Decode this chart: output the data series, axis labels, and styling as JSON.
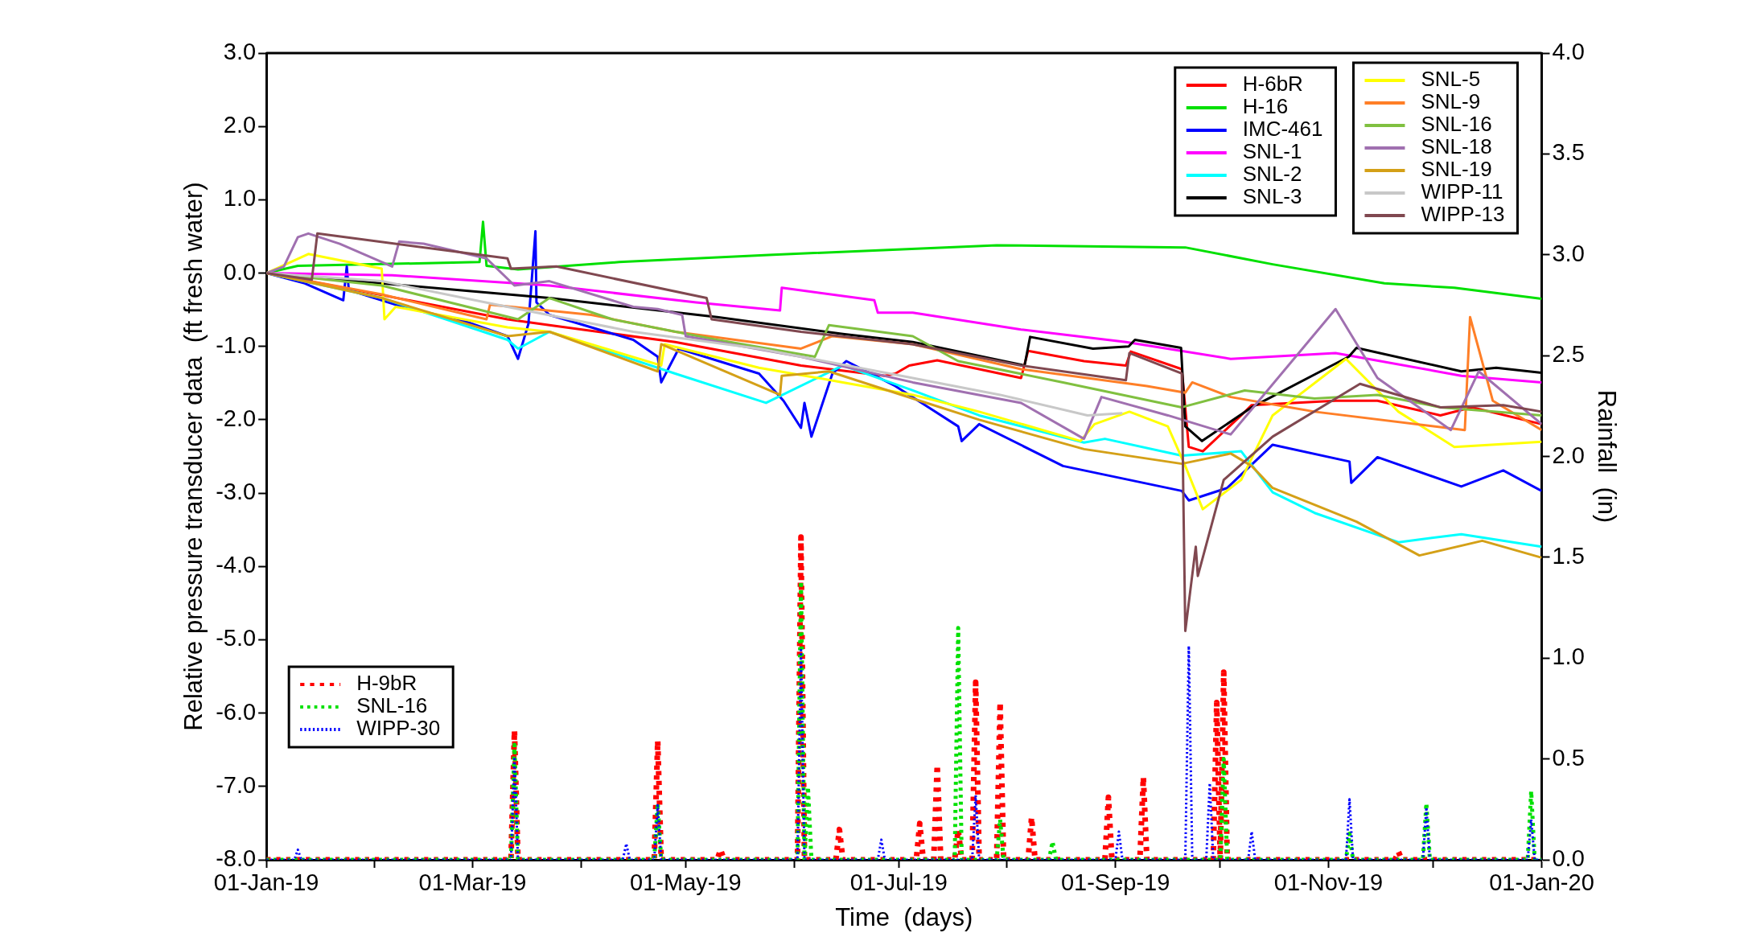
{
  "chart_data": {
    "type": "line",
    "xlabel": "Time  (days)",
    "ylabel": "Relative pressure transducer data  (ft fresh water)",
    "y2label": "Rainfall  (in)",
    "xlim": [
      "2019-01-01",
      "2020-01-01"
    ],
    "xticks": [
      {
        "value": "2019-01-01",
        "label": "01-Jan-19"
      },
      {
        "value": "2019-02-01",
        "label": null
      },
      {
        "value": "2019-03-01",
        "label": "01-Mar-19"
      },
      {
        "value": "2019-04-01",
        "label": null
      },
      {
        "value": "2019-05-01",
        "label": "01-May-19"
      },
      {
        "value": "2019-06-01",
        "label": null
      },
      {
        "value": "2019-07-01",
        "label": "01-Jul-19"
      },
      {
        "value": "2019-08-01",
        "label": null
      },
      {
        "value": "2019-09-01",
        "label": "01-Sep-19"
      },
      {
        "value": "2019-10-01",
        "label": null
      },
      {
        "value": "2019-11-01",
        "label": "01-Nov-19"
      },
      {
        "value": "2019-12-01",
        "label": null
      },
      {
        "value": "2020-01-01",
        "label": "01-Jan-20"
      }
    ],
    "ylim": [
      -8,
      3
    ],
    "yticks": [
      {
        "value": -8,
        "label": "-8.0"
      },
      {
        "value": -7,
        "label": "-7.0"
      },
      {
        "value": -6,
        "label": "-6.0"
      },
      {
        "value": -5,
        "label": "-5.0"
      },
      {
        "value": -4,
        "label": "-4.0"
      },
      {
        "value": -3,
        "label": "-3.0"
      },
      {
        "value": -2,
        "label": "-2.0"
      },
      {
        "value": -1,
        "label": "-1.0"
      },
      {
        "value": 0,
        "label": "0.0"
      },
      {
        "value": 1,
        "label": "1.0"
      },
      {
        "value": 2,
        "label": "2.0"
      },
      {
        "value": 3,
        "label": "3.0"
      }
    ],
    "y2lim": [
      0,
      4
    ],
    "y2ticks": [
      {
        "value": 0,
        "label": "0.0"
      },
      {
        "value": 0.5,
        "label": "0.5"
      },
      {
        "value": 1,
        "label": "1.0"
      },
      {
        "value": 1.5,
        "label": "1.5"
      },
      {
        "value": 2,
        "label": "2.0"
      },
      {
        "value": 2.5,
        "label": "2.5"
      },
      {
        "value": 3,
        "label": "3.0"
      },
      {
        "value": 3.5,
        "label": "3.5"
      },
      {
        "value": 4,
        "label": "4.0"
      }
    ],
    "legend": "top right",
    "marker": "none",
    "line_style": "solid",
    "series": [
      {
        "name": "H-6bR",
        "color": "#ff0000",
        "x": [
          "2019-01-01",
          "2019-02-03",
          "2019-03-11",
          "2019-03-23",
          "2019-04-28",
          "2019-06-03",
          "2019-06-27",
          "2019-06-30",
          "2019-07-04",
          "2019-07-12",
          "2019-08-05",
          "2019-08-07",
          "2019-08-23",
          "2019-09-04",
          "2019-09-05T10:00",
          "2019-09-20",
          "2019-09-22",
          "2019-09-26",
          "2019-10-07",
          "2019-10-10",
          "2019-11-03",
          "2019-11-15",
          "2019-12-03",
          "2019-12-12",
          "2020-01-01"
        ],
        "values": [
          0,
          -0.3,
          -0.63,
          -0.71,
          -0.94,
          -1.26,
          -1.4,
          -1.37,
          -1.26,
          -1.19,
          -1.43,
          -1.06,
          -1.2,
          -1.26,
          -1.07,
          -1.31,
          -2.37,
          -2.43,
          -1.94,
          -1.8,
          -1.74,
          -1.74,
          -1.94,
          -1.83,
          -2.06
        ]
      },
      {
        "name": "H-16",
        "color": "#00e000",
        "x": [
          "2019-01-01",
          "2019-01-10",
          "2019-03-03",
          "2019-03-04",
          "2019-03-05",
          "2019-03-14",
          "2019-04-12",
          "2019-05-26",
          "2019-07-29",
          "2019-09-21",
          "2019-10-16",
          "2019-11-17",
          "2019-12-07",
          "2020-01-01"
        ],
        "values": [
          0,
          0.1,
          0.15,
          0.7,
          0.1,
          0.05,
          0.15,
          0.25,
          0.38,
          0.35,
          0.12,
          -0.14,
          -0.2,
          -0.35
        ]
      },
      {
        "name": "IMC-461",
        "color": "#0000ff",
        "x": [
          "2019-01-01",
          "2019-01-12",
          "2019-01-23",
          "2019-01-24",
          "2019-01-24T14:00",
          "2019-02-09",
          "2019-02-27",
          "2019-03-11",
          "2019-03-14",
          "2019-03-17",
          "2019-03-19",
          "2019-03-19T07:00",
          "2019-03-23",
          "2019-04-16",
          "2019-04-23",
          "2019-04-24",
          "2019-04-29",
          "2019-05-22",
          "2019-05-29",
          "2019-06-03",
          "2019-06-04",
          "2019-06-06",
          "2019-06-12",
          "2019-06-16",
          "2019-06-30",
          "2019-07-18",
          "2019-07-19",
          "2019-07-24",
          "2019-08-17",
          "2019-09-20",
          "2019-09-22",
          "2019-10-03",
          "2019-10-16",
          "2019-11-07",
          "2019-11-07T12:00",
          "2019-11-15",
          "2019-12-09",
          "2019-12-21",
          "2020-01-01"
        ],
        "values": [
          0,
          -0.14,
          -0.37,
          0.09,
          -0.23,
          -0.46,
          -0.66,
          -0.86,
          -1.17,
          -0.69,
          0.57,
          -0.4,
          -0.57,
          -0.91,
          -1.14,
          -1.49,
          -1.03,
          -1.37,
          -1.74,
          -2.11,
          -1.77,
          -2.23,
          -1.37,
          -1.2,
          -1.54,
          -2.09,
          -2.29,
          -2.06,
          -2.63,
          -2.97,
          -3.1,
          -2.93,
          -2.34,
          -2.57,
          -2.86,
          -2.51,
          -2.91,
          -2.69,
          -2.97
        ]
      },
      {
        "name": "SNL-1",
        "color": "#ff00ff",
        "x": [
          "2019-01-01",
          "2019-02-06",
          "2019-03-23",
          "2019-05-04",
          "2019-05-28",
          "2019-05-28T12:00",
          "2019-06-24",
          "2019-06-25",
          "2019-07-05",
          "2019-08-05",
          "2019-09-04",
          "2019-10-04",
          "2019-11-03",
          "2019-12-09",
          "2020-01-01"
        ],
        "values": [
          0,
          -0.03,
          -0.17,
          -0.4,
          -0.51,
          -0.2,
          -0.37,
          -0.54,
          -0.54,
          -0.77,
          -0.94,
          -1.17,
          -1.09,
          -1.4,
          -1.49
        ]
      },
      {
        "name": "SNL-2",
        "color": "#00ffff",
        "x": [
          "2019-01-01",
          "2019-02-03",
          "2019-03-11",
          "2019-03-14",
          "2019-03-23",
          "2019-04-28",
          "2019-05-24",
          "2019-06-15",
          "2019-07-05",
          "2019-07-24",
          "2019-08-23",
          "2019-08-29",
          "2019-09-20",
          "2019-10-07",
          "2019-10-16",
          "2019-10-28",
          "2019-11-21",
          "2019-12-09",
          "2020-01-01"
        ],
        "values": [
          0,
          -0.34,
          -0.91,
          -1.03,
          -0.8,
          -1.37,
          -1.77,
          -1.26,
          -1.6,
          -1.94,
          -2.31,
          -2.26,
          -2.49,
          -2.43,
          -2.99,
          -3.27,
          -3.67,
          -3.56,
          -3.73
        ]
      },
      {
        "name": "SNL-3",
        "color": "#000000",
        "x": [
          "2019-01-01",
          "2019-02-03",
          "2019-03-23",
          "2019-05-10",
          "2019-06-15",
          "2019-07-05",
          "2019-08-06",
          "2019-08-07T14:00",
          "2019-08-25T14:00",
          "2019-09-04T19:00",
          "2019-09-06T14:00",
          "2019-09-19T19:00",
          "2019-09-21",
          "2019-09-25T19:00",
          "2019-10-10",
          "2019-11-06T19:00",
          "2019-11-09",
          "2019-12-09",
          "2019-12-19",
          "2020-01-01"
        ],
        "values": [
          0,
          -0.14,
          -0.34,
          -0.6,
          -0.83,
          -0.94,
          -1.26,
          -0.87,
          -1.03,
          -1.0,
          -0.91,
          -1.02,
          -2.09,
          -2.29,
          -1.83,
          -1.14,
          -1.02,
          -1.34,
          -1.29,
          -1.36
        ]
      },
      {
        "name": "SNL-5",
        "color": "#ffff00",
        "x": [
          "2019-01-01",
          "2019-01-13",
          "2019-02-03",
          "2019-02-03T19:00",
          "2019-02-07",
          "2019-03-11",
          "2019-03-23",
          "2019-04-24",
          "2019-04-25",
          "2019-05-22",
          "2019-06-15",
          "2019-07-05",
          "2019-07-24",
          "2019-08-22",
          "2019-08-26",
          "2019-09-05",
          "2019-09-16",
          "2019-09-21",
          "2019-09-26",
          "2019-10-07",
          "2019-10-16",
          "2019-11-06",
          "2019-11-21",
          "2019-12-07",
          "2020-01-01"
        ],
        "values": [
          0,
          0.26,
          0.06,
          -0.63,
          -0.46,
          -0.74,
          -0.8,
          -1.26,
          -0.97,
          -1.29,
          -1.49,
          -1.66,
          -1.89,
          -2.29,
          -2.06,
          -1.89,
          -2.09,
          -2.63,
          -3.22,
          -2.82,
          -1.94,
          -1.17,
          -1.89,
          -2.37,
          -2.3
        ]
      },
      {
        "name": "SNL-9",
        "color": "#ff7f27",
        "x": [
          "2019-01-01",
          "2019-02-03",
          "2019-03-05",
          "2019-03-06",
          "2019-04-04",
          "2019-04-28",
          "2019-06-03",
          "2019-06-12",
          "2019-07-05",
          "2019-08-05",
          "2019-09-10",
          "2019-09-21",
          "2019-09-23",
          "2019-10-04",
          "2019-10-28",
          "2019-12-10",
          "2019-12-11T12:00",
          "2019-12-18",
          "2020-01-01"
        ],
        "values": [
          0,
          -0.29,
          -0.63,
          -0.43,
          -0.57,
          -0.8,
          -1.03,
          -0.86,
          -0.97,
          -1.31,
          -1.54,
          -1.63,
          -1.49,
          -1.69,
          -1.89,
          -2.14,
          -0.6,
          -1.74,
          -2.14
        ]
      },
      {
        "name": "SNL-16",
        "color": "#80c040",
        "x": [
          "2019-01-01",
          "2019-02-03",
          "2019-03-14",
          "2019-03-23",
          "2019-04-10",
          "2019-05-10",
          "2019-06-07",
          "2019-06-11",
          "2019-07-05",
          "2019-07-18",
          "2019-08-17",
          "2019-09-20",
          "2019-10-08",
          "2019-10-28",
          "2019-11-15",
          "2019-12-03",
          "2020-01-01"
        ],
        "values": [
          0,
          -0.17,
          -0.63,
          -0.34,
          -0.63,
          -0.91,
          -1.14,
          -0.71,
          -0.86,
          -1.2,
          -1.49,
          -1.83,
          -1.6,
          -1.71,
          -1.66,
          -1.83,
          -1.94
        ]
      },
      {
        "name": "SNL-18",
        "color": "#a070b0",
        "x": [
          "2019-01-01",
          "2019-01-06",
          "2019-01-10",
          "2019-01-13",
          "2019-01-22",
          "2019-02-06",
          "2019-02-08",
          "2019-02-15",
          "2019-03-05",
          "2019-03-13",
          "2019-03-23",
          "2019-04-16",
          "2019-04-23",
          "2019-04-30",
          "2019-05-01",
          "2019-06-03",
          "2019-07-05",
          "2019-08-05",
          "2019-08-23",
          "2019-08-28",
          "2019-09-16",
          "2019-10-04",
          "2019-11-03",
          "2019-11-15",
          "2019-12-06",
          "2019-12-14",
          "2020-01-01"
        ],
        "values": [
          0,
          0.09,
          0.49,
          0.54,
          0.4,
          0.09,
          0.43,
          0.4,
          0.2,
          -0.17,
          -0.11,
          -0.46,
          -0.49,
          -0.57,
          -0.86,
          -1.14,
          -1.49,
          -1.77,
          -2.26,
          -1.69,
          -1.94,
          -2.2,
          -0.49,
          -1.43,
          -2.14,
          -1.34,
          -2.06
        ]
      },
      {
        "name": "SNL-19",
        "color": "#d4a017",
        "x": [
          "2019-01-01",
          "2019-02-03",
          "2019-03-11",
          "2019-03-23",
          "2019-04-23",
          "2019-04-24",
          "2019-05-28",
          "2019-05-28T12:00",
          "2019-06-11",
          "2019-07-05",
          "2019-07-24",
          "2019-08-23",
          "2019-09-20",
          "2019-10-04",
          "2019-10-10",
          "2019-10-16",
          "2019-11-09",
          "2019-11-27",
          "2019-12-15",
          "2020-01-01"
        ],
        "values": [
          0,
          -0.34,
          -0.86,
          -0.8,
          -1.34,
          -0.97,
          -1.66,
          -1.4,
          -1.34,
          -1.71,
          -2.0,
          -2.4,
          -2.6,
          -2.46,
          -2.63,
          -2.93,
          -3.39,
          -3.85,
          -3.65,
          -3.88
        ]
      },
      {
        "name": "WIPP-11",
        "color": "#c8c8c8",
        "x": [
          "2019-01-01",
          "2019-02-03",
          "2019-03-11",
          "2019-04-16",
          "2019-05-22",
          "2019-07-05",
          "2019-07-30",
          "2019-08-24",
          "2019-09-03"
        ],
        "values": [
          0,
          -0.11,
          -0.46,
          -0.8,
          -1.03,
          -1.43,
          -1.66,
          -1.94,
          -1.91
        ]
      },
      {
        "name": "WIPP-13",
        "color": "#804850",
        "x": [
          "2019-01-01",
          "2019-01-14",
          "2019-01-15T14:00",
          "2019-03-11",
          "2019-03-12",
          "2019-03-25",
          "2019-05-07",
          "2019-05-08T10:00",
          "2019-06-03",
          "2019-07-05",
          "2019-08-05",
          "2019-09-04",
          "2019-09-05",
          "2019-09-20",
          "2019-09-20T10:00",
          "2019-09-21",
          "2019-09-24",
          "2019-09-24T14:00",
          "2019-10-02",
          "2019-10-16",
          "2019-11-10",
          "2019-12-03",
          "2019-12-21",
          "2020-01-01"
        ],
        "values": [
          0,
          -0.09,
          0.54,
          0.2,
          0.06,
          0.09,
          -0.34,
          -0.63,
          -0.8,
          -0.97,
          -1.26,
          -1.46,
          -1.09,
          -1.37,
          -2.97,
          -4.88,
          -3.73,
          -4.13,
          -2.82,
          -2.23,
          -1.51,
          -1.83,
          -1.8,
          -1.89
        ]
      },
      {
        "name": "H-9bR",
        "color": "#ff0000",
        "axis": "y2",
        "line_style": "dotted",
        "x": [
          "2019-01-01",
          "2019-03-12",
          "2019-03-13",
          "2019-03-14",
          "2019-04-22",
          "2019-04-23",
          "2019-04-24",
          "2019-05-10",
          "2019-05-11",
          "2019-05-12",
          "2019-06-02",
          "2019-06-03",
          "2019-06-04",
          "2019-06-13",
          "2019-06-14",
          "2019-06-15",
          "2019-07-06",
          "2019-07-07",
          "2019-07-08",
          "2019-07-11",
          "2019-07-12",
          "2019-07-13",
          "2019-07-17",
          "2019-07-18",
          "2019-07-19",
          "2019-07-22",
          "2019-07-23",
          "2019-07-24",
          "2019-07-29",
          "2019-07-30",
          "2019-07-31",
          "2019-08-07",
          "2019-08-08",
          "2019-08-09",
          "2019-08-29",
          "2019-08-30",
          "2019-08-31",
          "2019-09-08",
          "2019-09-09",
          "2019-09-10",
          "2019-09-29",
          "2019-09-30",
          "2019-10-01",
          "2019-10-02",
          "2019-10-03",
          "2019-11-20",
          "2019-11-21",
          "2019-11-22",
          "2020-01-01"
        ],
        "values": [
          0,
          0,
          0.64,
          0,
          0,
          0.59,
          0,
          0,
          0.05,
          0,
          0,
          1.6,
          0,
          0,
          0.15,
          0,
          0,
          0.18,
          0,
          0,
          0.47,
          0,
          0,
          0.15,
          0,
          0,
          0.88,
          0,
          0,
          0.78,
          0,
          0,
          0.21,
          0,
          0,
          0.31,
          0,
          0,
          0.41,
          0,
          0,
          0.78,
          0,
          0.93,
          0,
          0,
          0.04,
          0,
          0
        ]
      },
      {
        "name": "SNL-16",
        "color": "#00e000",
        "axis": "y2",
        "line_style": "dotted",
        "x": [
          "2019-01-01",
          "2019-03-12",
          "2019-03-13",
          "2019-03-14",
          "2019-04-22",
          "2019-04-23",
          "2019-04-24",
          "2019-06-02",
          "2019-06-03",
          "2019-06-04",
          "2019-06-05",
          "2019-06-06",
          "2019-07-17",
          "2019-07-18",
          "2019-07-19",
          "2019-07-29",
          "2019-07-30",
          "2019-07-31",
          "2019-08-13",
          "2019-08-14",
          "2019-08-15",
          "2019-10-01",
          "2019-10-02",
          "2019-10-03",
          "2019-11-06",
          "2019-11-07",
          "2019-11-08",
          "2019-11-28",
          "2019-11-29",
          "2019-11-30",
          "2019-12-28",
          "2019-12-29",
          "2019-12-30",
          "2020-01-01"
        ],
        "values": [
          0,
          0,
          0.57,
          0,
          0,
          0.28,
          0,
          0,
          1.38,
          0,
          0.36,
          0,
          0,
          1.15,
          0,
          0,
          0.2,
          0,
          0,
          0.09,
          0,
          0,
          0.5,
          0,
          0,
          0.13,
          0,
          0,
          0.28,
          0,
          0,
          0.34,
          0,
          0
        ]
      },
      {
        "name": "WIPP-30",
        "color": "#0000ff",
        "axis": "y2",
        "line_style": "dotted",
        "x": [
          "2019-01-01",
          "2019-01-09",
          "2019-01-10",
          "2019-01-11",
          "2019-03-12",
          "2019-03-13",
          "2019-03-14",
          "2019-04-13",
          "2019-04-14",
          "2019-04-15",
          "2019-04-22",
          "2019-04-23",
          "2019-04-24",
          "2019-06-02",
          "2019-06-03",
          "2019-06-04",
          "2019-06-25",
          "2019-06-26",
          "2019-06-27",
          "2019-07-22",
          "2019-07-23",
          "2019-07-24",
          "2019-09-01",
          "2019-09-02",
          "2019-09-03",
          "2019-09-21",
          "2019-09-22",
          "2019-09-23",
          "2019-09-27",
          "2019-09-28",
          "2019-09-29",
          "2019-10-09",
          "2019-10-10",
          "2019-10-11",
          "2019-11-06",
          "2019-11-07",
          "2019-11-08",
          "2019-11-28",
          "2019-11-29",
          "2019-11-30",
          "2019-12-28",
          "2019-12-29",
          "2019-12-30",
          "2020-01-01"
        ],
        "values": [
          0,
          0,
          0.05,
          0,
          0,
          0.51,
          0,
          0,
          0.08,
          0,
          0,
          0.27,
          0,
          0,
          1.05,
          0,
          0,
          0.1,
          0,
          0,
          0.32,
          0,
          0,
          0.14,
          0,
          0,
          1.06,
          0,
          0,
          0.38,
          0,
          0,
          0.14,
          0,
          0,
          0.3,
          0,
          0,
          0.26,
          0,
          0,
          0.2,
          0,
          0
        ]
      }
    ]
  }
}
